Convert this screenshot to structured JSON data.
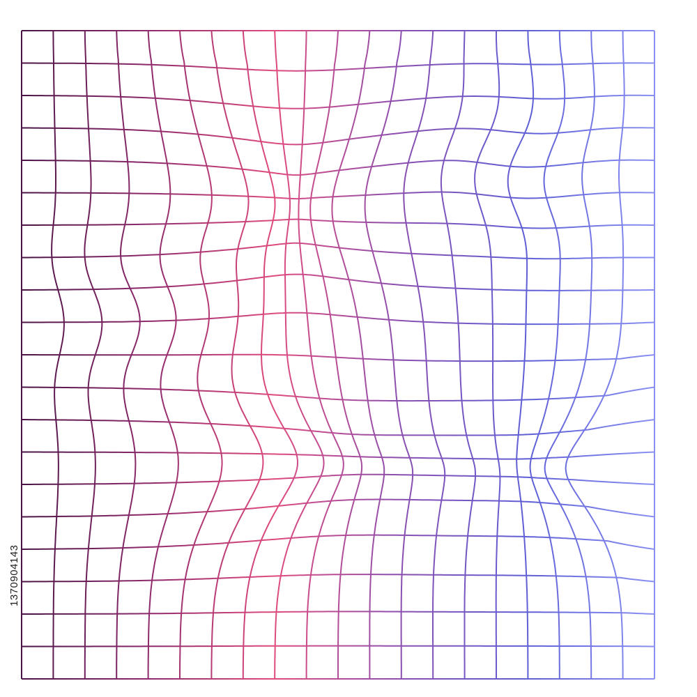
{
  "image": {
    "subject": "distorted-grid",
    "columns": 20,
    "rows": 20,
    "gradient_colors": [
      "#4b1446",
      "#8e2a6c",
      "#df4b7e",
      "#8a4fb0",
      "#5f5fd6",
      "#8a90f2"
    ],
    "stock_id": "1370904143"
  }
}
